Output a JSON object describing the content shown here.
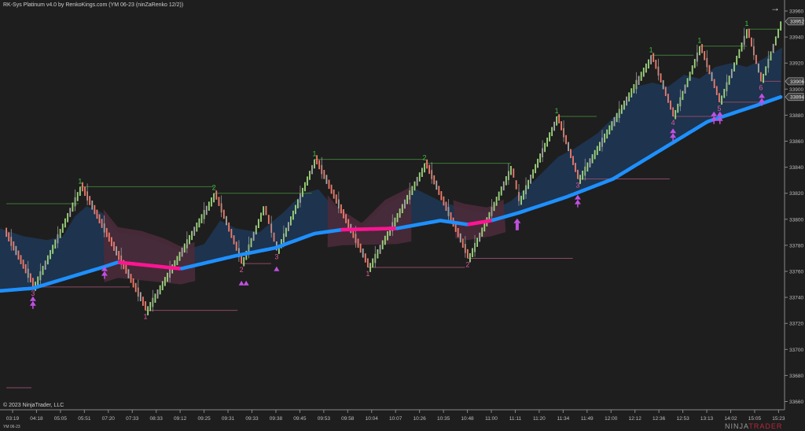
{
  "header": {
    "title": "RK-Sys Platinum v4.0 by RenkoKings.com (YM 06-23 (ninZaRenko 12/2))",
    "copyright": "© 2023 NinjaTrader, LLC",
    "instrument": "YM 06-23",
    "logo_text": "NINJA",
    "logo_text_accent": "TRADER",
    "scroll_icon": "arrow-right-icon"
  },
  "colors": {
    "background": "#1e1e1e",
    "up_brick": "#9ed67e",
    "down_brick": "#ef7c6c",
    "neutral_brick": "#a8a8a8",
    "ma_bull": "#1e90ff",
    "ma_bear": "#ff1493",
    "cloud_bull": "#1f3550",
    "cloud_bear": "#4a2a38",
    "high_level": "#3d7a35",
    "low_level": "#8a4a66",
    "high_label": "#3fbf3f",
    "low_label": "#e0559a",
    "signal": "#c050e0"
  },
  "chart_data": {
    "type": "line",
    "subtype": "renko",
    "title": "",
    "xlabel": "",
    "ylabel": "",
    "x_ticks": [
      "03:19",
      "04:18",
      "05:05",
      "05:51",
      "07:20",
      "07:33",
      "08:33",
      "09:12",
      "09:25",
      "09:31",
      "09:33",
      "09:38",
      "09:45",
      "09:53",
      "09:58",
      "10:04",
      "10:07",
      "10:26",
      "10:35",
      "10:48",
      "11:00",
      "11:11",
      "11:20",
      "11:34",
      "11:49",
      "12:00",
      "12:12",
      "12:36",
      "12:53",
      "13:13",
      "14:02",
      "15:05",
      "15:23"
    ],
    "y_ticks": [
      33960,
      33940,
      33920,
      33900,
      33880,
      33860,
      33840,
      33820,
      33800,
      33780,
      33760,
      33740,
      33720,
      33700,
      33680,
      33660
    ],
    "ylim": [
      33656,
      33968
    ],
    "grid": false,
    "price_tags": [
      33952,
      33906,
      33894
    ],
    "swings": [
      [
        -0.36,
        33790
      ],
      [
        0.85,
        33748
      ],
      [
        2.82,
        33825
      ],
      [
        5.55,
        33730
      ],
      [
        8.41,
        33820
      ],
      [
        9.56,
        33766
      ],
      [
        10.48,
        33810
      ],
      [
        11.03,
        33776
      ],
      [
        12.61,
        33846
      ],
      [
        14.84,
        33763
      ],
      [
        17.21,
        33843
      ],
      [
        19.01,
        33770
      ],
      [
        20.82,
        33841
      ],
      [
        21.15,
        33814
      ],
      [
        22.73,
        33879
      ],
      [
        23.61,
        33831
      ],
      [
        26.67,
        33926
      ],
      [
        27.59,
        33879
      ],
      [
        28.7,
        33933
      ],
      [
        29.52,
        33890
      ],
      [
        30.67,
        33946
      ],
      [
        31.26,
        33906
      ],
      [
        32.09,
        33952
      ]
    ],
    "moving_average": [
      [
        -0.53,
        33745
      ],
      [
        0.85,
        33747
      ],
      [
        3.74,
        33763
      ],
      [
        4.4,
        33767
      ],
      [
        7.03,
        33762
      ],
      [
        9.33,
        33772
      ],
      [
        10.97,
        33778
      ],
      [
        12.61,
        33789
      ],
      [
        13.76,
        33792
      ],
      [
        16.06,
        33793
      ],
      [
        17.87,
        33799
      ],
      [
        19.01,
        33796
      ],
      [
        20.0,
        33799
      ],
      [
        21.15,
        33805
      ],
      [
        23.12,
        33817
      ],
      [
        25.09,
        33831
      ],
      [
        27.06,
        33853
      ],
      [
        29.03,
        33875
      ],
      [
        31.0,
        33887
      ],
      [
        32.09,
        33894
      ]
    ],
    "bear_zones": [
      [
        4.4,
        7.03
      ],
      [
        13.76,
        16.06
      ],
      [
        19.01,
        20.0
      ]
    ],
    "cloud_upper": [
      [
        -0.53,
        33793
      ],
      [
        0.46,
        33787
      ],
      [
        1.44,
        33784
      ],
      [
        2.1,
        33787
      ],
      [
        2.59,
        33802
      ],
      [
        3.09,
        33810
      ],
      [
        3.74,
        33805
      ],
      [
        4.4,
        33790
      ],
      [
        5.39,
        33787
      ],
      [
        6.37,
        33781
      ],
      [
        7.03,
        33775
      ],
      [
        8.01,
        33781
      ],
      [
        8.67,
        33799
      ],
      [
        9.33,
        33793
      ],
      [
        10.31,
        33790
      ],
      [
        11.3,
        33805
      ],
      [
        12.12,
        33820
      ],
      [
        12.78,
        33823
      ],
      [
        13.6,
        33805
      ],
      [
        14.58,
        33793
      ],
      [
        15.57,
        33811
      ],
      [
        16.22,
        33817
      ],
      [
        16.88,
        33823
      ],
      [
        17.87,
        33814
      ],
      [
        18.85,
        33808
      ],
      [
        19.84,
        33805
      ],
      [
        20.82,
        33814
      ],
      [
        21.81,
        33830
      ],
      [
        22.79,
        33848
      ],
      [
        23.45,
        33854
      ],
      [
        24.43,
        33866
      ],
      [
        25.42,
        33884
      ],
      [
        26.08,
        33902
      ],
      [
        26.73,
        33905
      ],
      [
        27.39,
        33902
      ],
      [
        28.05,
        33911
      ],
      [
        28.7,
        33908
      ],
      [
        29.36,
        33917
      ],
      [
        30.02,
        33920
      ],
      [
        30.67,
        33917
      ],
      [
        31.33,
        33923
      ],
      [
        32.15,
        33932
      ]
    ],
    "levels": [
      {
        "from": -0.26,
        "to": 2.76,
        "price": 33812,
        "kind": "high",
        "label": ""
      },
      {
        "from": 2.82,
        "to": 8.41,
        "price": 33825,
        "kind": "high",
        "label": "1"
      },
      {
        "from": 8.41,
        "to": 12.5,
        "price": 33820,
        "kind": "high",
        "label": "2"
      },
      {
        "from": 12.61,
        "to": 17.21,
        "price": 33846,
        "kind": "high",
        "label": "1"
      },
      {
        "from": 17.21,
        "to": 20.82,
        "price": 33843,
        "kind": "high",
        "label": "2"
      },
      {
        "from": 22.73,
        "to": 24.4,
        "price": 33879,
        "kind": "high",
        "label": "1"
      },
      {
        "from": 26.67,
        "to": 28.45,
        "price": 33926,
        "kind": "high",
        "label": "1"
      },
      {
        "from": 28.7,
        "to": 30.67,
        "price": 33933,
        "kind": "high",
        "label": "1"
      },
      {
        "from": 30.67,
        "to": 32.09,
        "price": 33946,
        "kind": "high",
        "label": "1"
      },
      {
        "from": 0.85,
        "to": 4.9,
        "price": 33748,
        "kind": "low",
        "label": "3"
      },
      {
        "from": 5.55,
        "to": 9.4,
        "price": 33730,
        "kind": "low",
        "label": "1"
      },
      {
        "from": 9.56,
        "to": 10.8,
        "price": 33766,
        "kind": "low",
        "label": "2"
      },
      {
        "from": 11.03,
        "to": 11.03,
        "price": 33776,
        "kind": "low",
        "label": "3"
      },
      {
        "from": 14.84,
        "to": 18.9,
        "price": 33763,
        "kind": "low",
        "label": "1"
      },
      {
        "from": 19.01,
        "to": 23.4,
        "price": 33770,
        "kind": "low",
        "label": "2"
      },
      {
        "from": 23.61,
        "to": 27.45,
        "price": 33831,
        "kind": "low",
        "label": "3"
      },
      {
        "from": 27.59,
        "to": 29.36,
        "price": 33879,
        "kind": "low",
        "label": "4"
      },
      {
        "from": 29.52,
        "to": 31.17,
        "price": 33890,
        "kind": "low",
        "label": "5"
      },
      {
        "from": 31.26,
        "to": 32.09,
        "price": 33906,
        "kind": "low",
        "label": "6"
      }
    ],
    "signals": [
      {
        "x": 0.85,
        "price": 33736,
        "type": "double-up"
      },
      {
        "x": 3.84,
        "price": 33759,
        "type": "double-up"
      },
      {
        "x": 9.66,
        "price": 33751,
        "type": "triangle-pair"
      },
      {
        "x": 11.03,
        "price": 33762,
        "type": "triangle"
      },
      {
        "x": 21.08,
        "price": 33797,
        "type": "arrow-up"
      },
      {
        "x": 23.61,
        "price": 33814,
        "type": "double-up"
      },
      {
        "x": 27.59,
        "price": 33865,
        "type": "double-up"
      },
      {
        "x": 29.3,
        "price": 33878,
        "type": "double-up"
      },
      {
        "x": 29.55,
        "price": 33878,
        "type": "double-up"
      },
      {
        "x": 31.3,
        "price": 33892,
        "type": "double-up"
      }
    ]
  }
}
